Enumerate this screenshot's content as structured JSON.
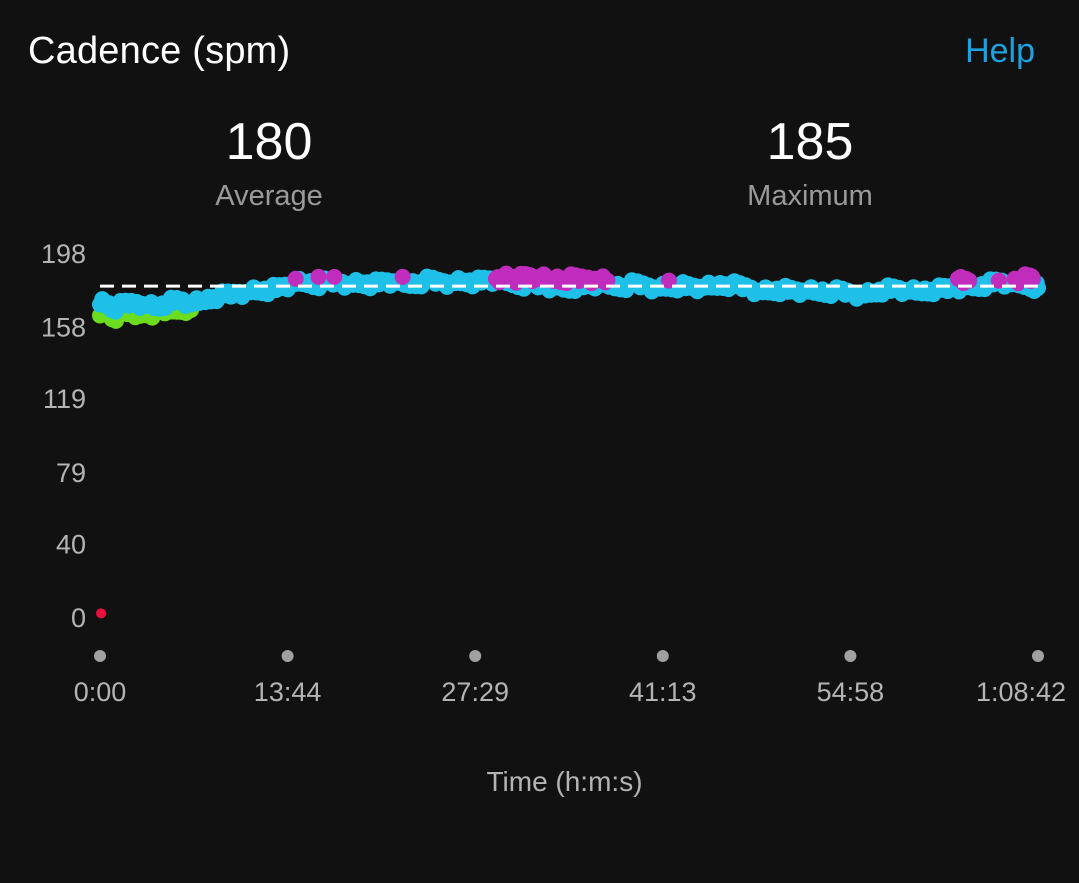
{
  "header": {
    "title": "Cadence (spm)",
    "help_label": "Help"
  },
  "stats": {
    "average": {
      "value": "180",
      "label": "Average"
    },
    "maximum": {
      "value": "185",
      "label": "Maximum"
    }
  },
  "colors": {
    "background": "#111111",
    "accent": "#1ea1e0",
    "zone_blue": "#1ec0e8",
    "zone_green": "#6cdc1e",
    "zone_purple": "#c02cbc",
    "zone_red": "#e8103c",
    "average_line": "#ffffff"
  },
  "chart_data": {
    "type": "scatter",
    "xlabel": "Time (h:m:s)",
    "ylabel": "",
    "y_ticks": [
      198,
      158,
      119,
      79,
      40,
      0
    ],
    "x_ticks": [
      "0:00",
      "13:44",
      "27:29",
      "41:13",
      "54:58",
      "1:08:42"
    ],
    "xlim_seconds": [
      0,
      4122
    ],
    "ylim": [
      0,
      198
    ],
    "average_line": 180,
    "average_line_style": "dashed",
    "grid": false,
    "series": [
      {
        "color": "#6cdc1e",
        "points": [
          [
            0,
            164
          ],
          [
            30,
            166
          ],
          [
            60,
            163
          ],
          [
            100,
            165
          ],
          [
            140,
            167
          ],
          [
            170,
            164
          ],
          [
            200,
            166
          ],
          [
            240,
            165
          ],
          [
            270,
            168
          ],
          [
            300,
            166
          ],
          [
            330,
            167
          ],
          [
            370,
            168
          ],
          [
            400,
            167
          ]
        ]
      },
      {
        "color": "#e8103c",
        "points": [
          [
            5,
            2
          ]
        ]
      },
      {
        "color": "#c02cbc",
        "points": [
          [
            860,
            184
          ],
          [
            960,
            185
          ],
          [
            1030,
            185
          ],
          [
            1330,
            185
          ],
          [
            1740,
            184
          ],
          [
            1770,
            185
          ],
          [
            1800,
            185
          ],
          [
            1840,
            184
          ],
          [
            1880,
            185
          ],
          [
            1920,
            184
          ],
          [
            1980,
            184
          ],
          [
            2040,
            184
          ],
          [
            2080,
            184
          ],
          [
            2130,
            184
          ],
          [
            2190,
            184
          ],
          [
            2230,
            183
          ],
          [
            2500,
            183
          ],
          [
            3770,
            184
          ],
          [
            3820,
            183
          ],
          [
            3950,
            183
          ],
          [
            4020,
            184
          ],
          [
            4080,
            184
          ],
          [
            4100,
            184
          ]
        ]
      },
      {
        "color": "#1ec0e8",
        "points": [
          [
            0,
            170
          ],
          [
            20,
            171
          ],
          [
            60,
            168
          ],
          [
            100,
            170
          ],
          [
            150,
            171
          ],
          [
            200,
            170
          ],
          [
            250,
            169
          ],
          [
            300,
            171
          ],
          [
            350,
            172
          ],
          [
            400,
            170
          ],
          [
            450,
            172
          ],
          [
            500,
            174
          ],
          [
            550,
            175
          ],
          [
            600,
            176
          ],
          [
            650,
            177
          ],
          [
            700,
            178
          ],
          [
            750,
            178
          ],
          [
            800,
            179
          ],
          [
            850,
            181
          ],
          [
            900,
            182
          ],
          [
            950,
            181
          ],
          [
            1000,
            182
          ],
          [
            1050,
            182
          ],
          [
            1100,
            181
          ],
          [
            1150,
            182
          ],
          [
            1200,
            181
          ],
          [
            1250,
            182
          ],
          [
            1300,
            182
          ],
          [
            1350,
            181
          ],
          [
            1400,
            182
          ],
          [
            1450,
            183
          ],
          [
            1500,
            182
          ],
          [
            1550,
            182
          ],
          [
            1600,
            183
          ],
          [
            1650,
            182
          ],
          [
            1700,
            183
          ],
          [
            1750,
            183
          ],
          [
            1800,
            182
          ],
          [
            1850,
            181
          ],
          [
            1900,
            181
          ],
          [
            1950,
            180
          ],
          [
            2000,
            180
          ],
          [
            2050,
            179
          ],
          [
            2100,
            180
          ],
          [
            2150,
            180
          ],
          [
            2200,
            181
          ],
          [
            2250,
            180
          ],
          [
            2300,
            180
          ],
          [
            2350,
            181
          ],
          [
            2400,
            180
          ],
          [
            2450,
            179
          ],
          [
            2500,
            180
          ],
          [
            2550,
            180
          ],
          [
            2600,
            179
          ],
          [
            2650,
            179
          ],
          [
            2700,
            180
          ],
          [
            2750,
            181
          ],
          [
            2800,
            180
          ],
          [
            2850,
            179
          ],
          [
            2900,
            177
          ],
          [
            2950,
            178
          ],
          [
            3000,
            178
          ],
          [
            3050,
            177
          ],
          [
            3100,
            177
          ],
          [
            3150,
            177
          ],
          [
            3200,
            177
          ],
          [
            3250,
            177
          ],
          [
            3300,
            176
          ],
          [
            3350,
            175
          ],
          [
            3400,
            177
          ],
          [
            3450,
            178
          ],
          [
            3500,
            178
          ],
          [
            3550,
            177
          ],
          [
            3600,
            177
          ],
          [
            3650,
            178
          ],
          [
            3700,
            178
          ],
          [
            3750,
            179
          ],
          [
            3800,
            180
          ],
          [
            3850,
            180
          ],
          [
            3900,
            181
          ],
          [
            3950,
            182
          ],
          [
            4000,
            181
          ],
          [
            4050,
            181
          ],
          [
            4100,
            180
          ],
          [
            4122,
            179
          ]
        ]
      }
    ]
  }
}
